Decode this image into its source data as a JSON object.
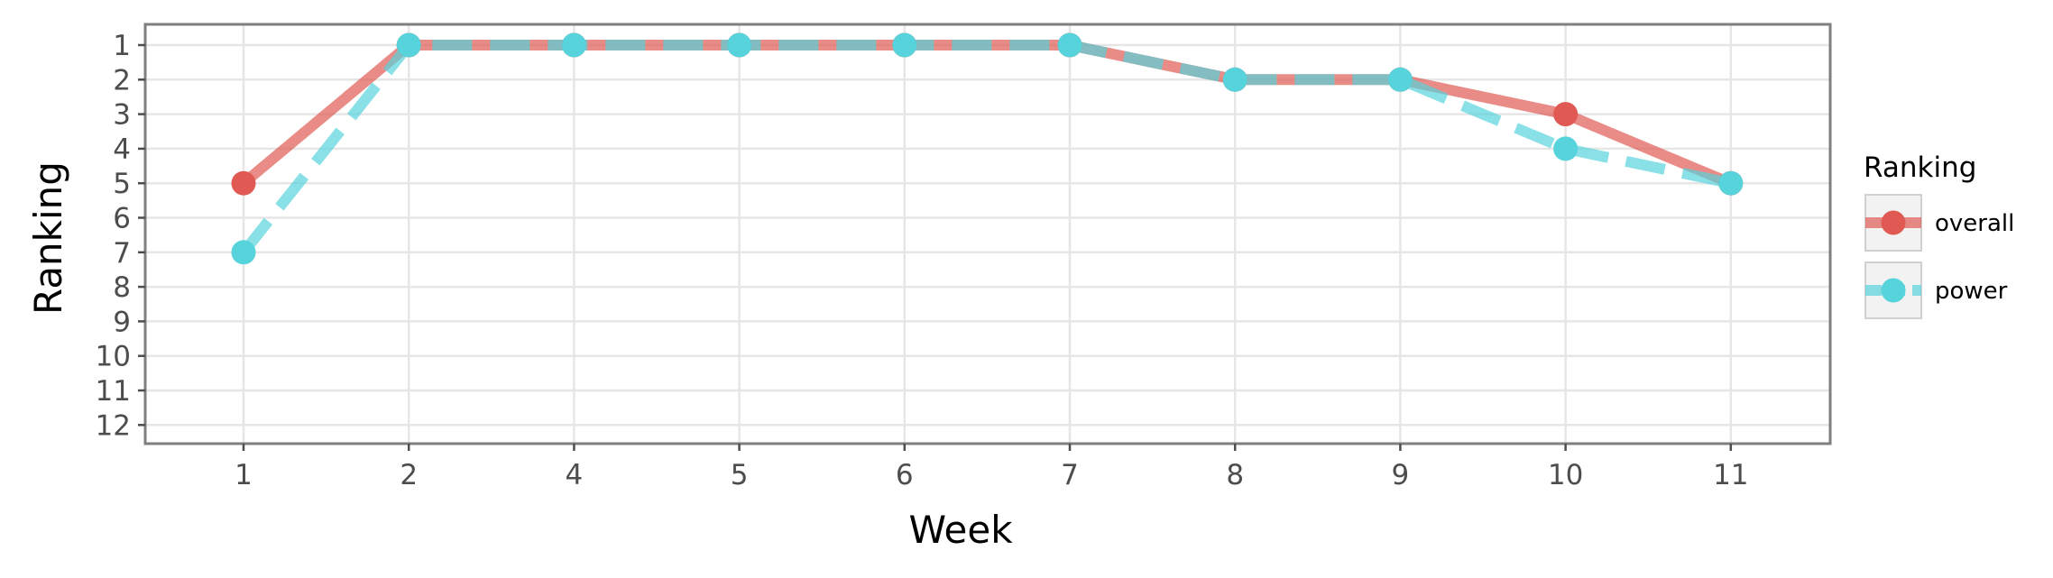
{
  "chart_data": {
    "type": "line",
    "x_label": "Week",
    "y_label": "Ranking",
    "x_categories": [
      "1",
      "2",
      "4",
      "5",
      "6",
      "7",
      "8",
      "9",
      "10",
      "11"
    ],
    "y_ticks": [
      "1",
      "2",
      "3",
      "4",
      "5",
      "6",
      "7",
      "8",
      "9",
      "10",
      "11",
      "12"
    ],
    "y_range": [
      1,
      12
    ],
    "y_reversed": true,
    "grid": true,
    "legend": {
      "title": "Ranking",
      "placement": "right"
    },
    "series": [
      {
        "name": "overall",
        "color": "#e05a53",
        "line_style": "solid",
        "values": [
          5,
          1,
          1,
          1,
          1,
          1,
          2,
          2,
          3,
          5
        ]
      },
      {
        "name": "power",
        "color": "#57d3dc",
        "line_style": "dashed",
        "values": [
          7,
          1,
          1,
          1,
          1,
          1,
          2,
          2,
          4,
          5
        ]
      }
    ]
  }
}
